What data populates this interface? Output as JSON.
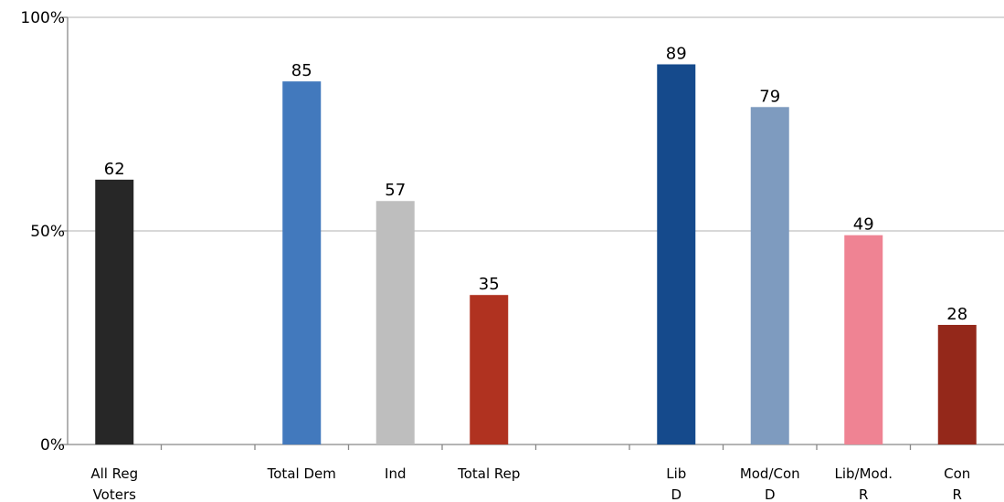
{
  "chart_data": {
    "type": "bar",
    "categories": [
      [
        "All Reg",
        "Voters"
      ],
      [
        ""
      ],
      [
        "Total Dem"
      ],
      [
        "Ind"
      ],
      [
        "Total Rep"
      ],
      [
        ""
      ],
      [
        "Lib",
        "D"
      ],
      [
        "Mod/Con",
        "D"
      ],
      [
        "Lib/Mod.",
        "R"
      ],
      [
        "Con",
        "R"
      ]
    ],
    "values": [
      62,
      null,
      85,
      57,
      35,
      null,
      89,
      79,
      49,
      28
    ],
    "colors": [
      "#272727",
      null,
      "#4279bd",
      "#bebebe",
      "#b03220",
      null,
      "#154a8c",
      "#7e9bbf",
      "#ef8393",
      "#94281a"
    ],
    "ylim": [
      0,
      100
    ],
    "yticks": [
      0,
      50,
      100
    ],
    "ytick_labels": [
      "0%",
      "50%",
      "100%"
    ],
    "title": "",
    "xlabel": "",
    "ylabel": "",
    "grid": true,
    "grid_color": "#c0c0c0"
  }
}
